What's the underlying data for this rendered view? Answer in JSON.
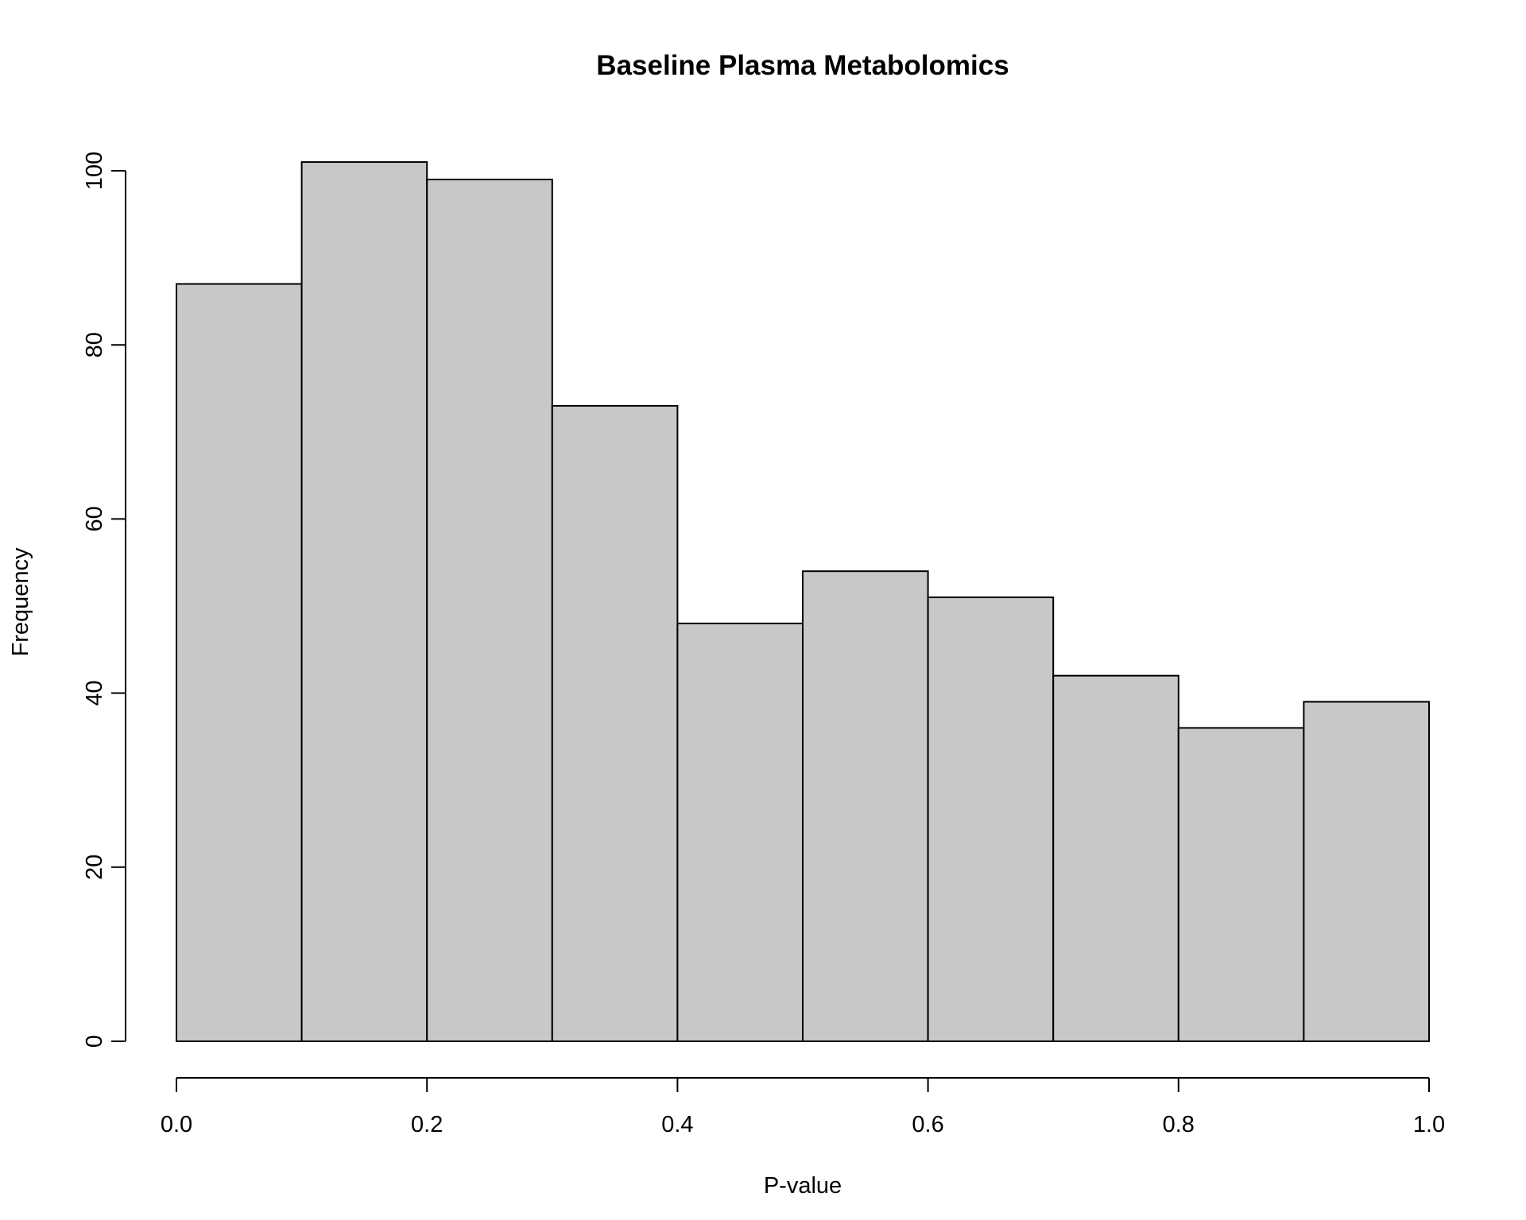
{
  "chart_data": {
    "type": "bar",
    "title": "Baseline Plasma Metabolomics",
    "xlabel": "P-value",
    "ylabel": "Frequency",
    "bins": [
      {
        "start": 0.0,
        "end": 0.1,
        "count": 87
      },
      {
        "start": 0.1,
        "end": 0.2,
        "count": 101
      },
      {
        "start": 0.2,
        "end": 0.3,
        "count": 99
      },
      {
        "start": 0.3,
        "end": 0.4,
        "count": 73
      },
      {
        "start": 0.4,
        "end": 0.5,
        "count": 48
      },
      {
        "start": 0.5,
        "end": 0.6,
        "count": 54
      },
      {
        "start": 0.6,
        "end": 0.7,
        "count": 51
      },
      {
        "start": 0.7,
        "end": 0.8,
        "count": 42
      },
      {
        "start": 0.8,
        "end": 0.9,
        "count": 36
      },
      {
        "start": 0.9,
        "end": 1.0,
        "count": 39
      }
    ],
    "xlim": [
      0,
      1
    ],
    "ylim": [
      0,
      100
    ],
    "x_ticks": [
      {
        "value": 0.0,
        "label": "0.0"
      },
      {
        "value": 0.2,
        "label": "0.2"
      },
      {
        "value": 0.4,
        "label": "0.4"
      },
      {
        "value": 0.6,
        "label": "0.6"
      },
      {
        "value": 0.8,
        "label": "0.8"
      },
      {
        "value": 1.0,
        "label": "1.0"
      }
    ],
    "y_ticks": [
      {
        "value": 0,
        "label": "0"
      },
      {
        "value": 20,
        "label": "20"
      },
      {
        "value": 40,
        "label": "40"
      },
      {
        "value": 60,
        "label": "60"
      },
      {
        "value": 80,
        "label": "80"
      },
      {
        "value": 100,
        "label": "100"
      }
    ],
    "grid": false,
    "legend": "none",
    "colors": {
      "bar_fill": "#c8c8c8",
      "bar_stroke": "#000000",
      "background": "#ffffff"
    }
  }
}
